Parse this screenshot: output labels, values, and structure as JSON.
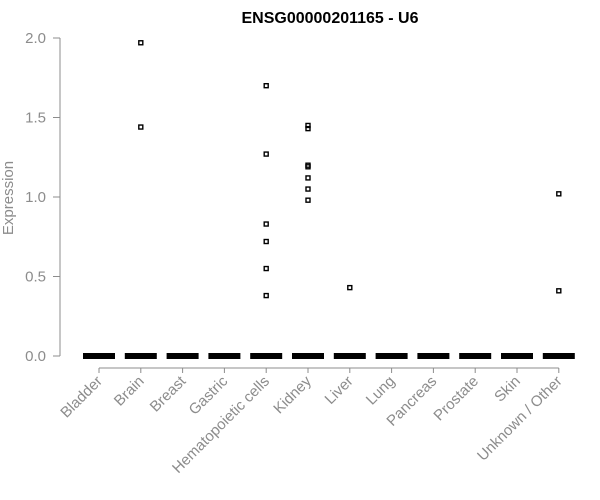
{
  "chart_data": {
    "type": "scatter",
    "title": "ENSG00000201165 - U6",
    "xlabel": "",
    "ylabel": "Expression",
    "ylim": [
      0,
      2.0
    ],
    "yticks": [
      "0.0",
      "0.5",
      "1.0",
      "1.5",
      "2.0"
    ],
    "grid": false,
    "categories": [
      "Bladder",
      "Brain",
      "Breast",
      "Gastric",
      "Hematopoietic cells",
      "Kidney",
      "Liver",
      "Lung",
      "Pancreas",
      "Prostate",
      "Skin",
      "Unknown / Other"
    ],
    "baseline_value": 0,
    "points": [
      {
        "category": "Brain",
        "value": 1.97
      },
      {
        "category": "Brain",
        "value": 1.44
      },
      {
        "category": "Hematopoietic cells",
        "value": 1.7
      },
      {
        "category": "Hematopoietic cells",
        "value": 1.27
      },
      {
        "category": "Hematopoietic cells",
        "value": 0.83
      },
      {
        "category": "Hematopoietic cells",
        "value": 0.72
      },
      {
        "category": "Hematopoietic cells",
        "value": 0.55
      },
      {
        "category": "Hematopoietic cells",
        "value": 0.38
      },
      {
        "category": "Kidney",
        "value": 1.45
      },
      {
        "category": "Kidney",
        "value": 1.43
      },
      {
        "category": "Kidney",
        "value": 1.2
      },
      {
        "category": "Kidney",
        "value": 1.19
      },
      {
        "category": "Kidney",
        "value": 1.12
      },
      {
        "category": "Kidney",
        "value": 1.05
      },
      {
        "category": "Kidney",
        "value": 0.98
      },
      {
        "category": "Liver",
        "value": 0.43
      },
      {
        "category": "Unknown / Other",
        "value": 1.02
      },
      {
        "category": "Unknown / Other",
        "value": 0.41
      }
    ]
  }
}
